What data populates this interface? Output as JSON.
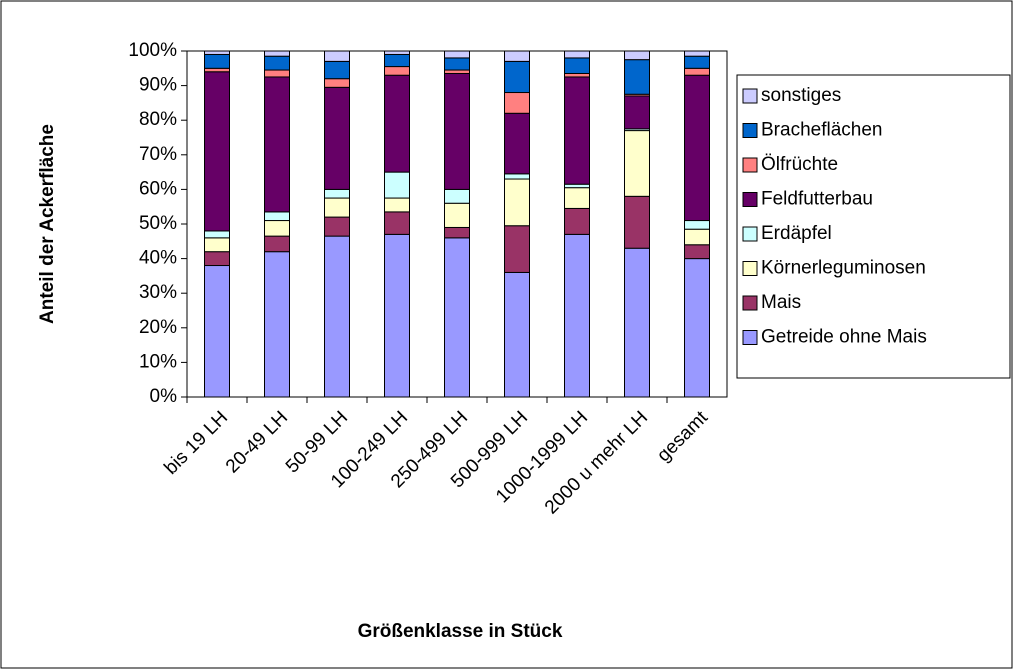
{
  "chart_data": {
    "type": "stacked_bar",
    "y_label": "Anteil der Ackerfläche",
    "x_label": "Größenklasse in Stück",
    "categories": [
      "bis 19 LH",
      "20-49 LH",
      "50-99 LH",
      "100-249 LH",
      "250-499 LH",
      "500-999 LH",
      "1000-1999 LH",
      "2000 u mehr LH",
      "gesamt"
    ],
    "series": [
      {
        "name": "Getreide ohne Mais",
        "color": "#9999ff",
        "values": [
          38,
          42,
          46.5,
          47,
          46,
          36,
          47,
          43,
          40
        ]
      },
      {
        "name": "Mais",
        "color": "#993366",
        "values": [
          4,
          4.5,
          5.5,
          6.5,
          3,
          13.5,
          7.5,
          15,
          4
        ]
      },
      {
        "name": "Körnerleguminosen",
        "color": "#ffffcc",
        "values": [
          4,
          4.5,
          5.5,
          4,
          7,
          13.5,
          6,
          19,
          4.5
        ]
      },
      {
        "name": "Erdäpfel",
        "color": "#ccffff",
        "values": [
          2,
          2.5,
          2.5,
          7.5,
          4,
          1.5,
          1,
          0.5,
          2.5
        ]
      },
      {
        "name": "Feldfutterbau",
        "color": "#660066",
        "values": [
          46,
          39,
          29.5,
          28,
          33.5,
          17.5,
          31,
          9.5,
          42
        ]
      },
      {
        "name": "Ölfrüchte",
        "color": "#ff8080",
        "values": [
          1,
          2,
          2.5,
          2.5,
          1,
          6,
          1,
          0.5,
          2
        ]
      },
      {
        "name": "Bracheflächen",
        "color": "#0066cc",
        "values": [
          4,
          4,
          5,
          3.5,
          3.5,
          9,
          4.5,
          10,
          3.5
        ]
      },
      {
        "name": "sonstiges",
        "color": "#ccccff",
        "values": [
          1,
          1.5,
          3,
          1,
          2,
          3,
          2,
          2.5,
          1.5
        ]
      }
    ],
    "ylim": [
      0,
      100
    ],
    "yticks": [
      {
        "value": 0,
        "label": "0%"
      },
      {
        "value": 10,
        "label": "10%"
      },
      {
        "value": 20,
        "label": "20%"
      },
      {
        "value": 30,
        "label": "30%"
      },
      {
        "value": 40,
        "label": "40%"
      },
      {
        "value": 50,
        "label": "50%"
      },
      {
        "value": 60,
        "label": "60%"
      },
      {
        "value": 70,
        "label": "70%"
      },
      {
        "value": 80,
        "label": "80%"
      },
      {
        "value": 90,
        "label": "90%"
      },
      {
        "value": 100,
        "label": "100%"
      }
    ],
    "grid": false
  }
}
